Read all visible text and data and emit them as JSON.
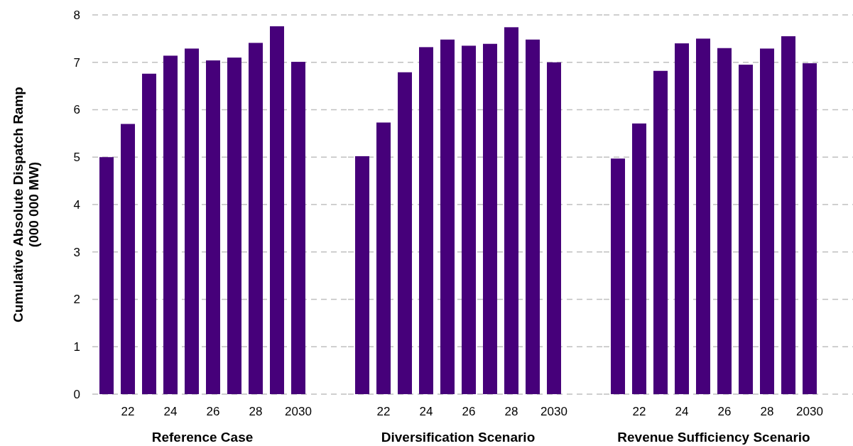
{
  "chart_data": [
    {
      "type": "bar",
      "xlabel": "Reference Case",
      "ylabel": "Cumulative Absolute Dispatch Ramp\n(000 000 MW)",
      "categories": [
        null,
        "22",
        null,
        "24",
        null,
        "26",
        null,
        "28",
        null,
        "2030"
      ],
      "values": [
        5.0,
        5.7,
        6.76,
        7.14,
        7.29,
        7.04,
        7.1,
        7.41,
        7.76,
        7.01
      ],
      "color": "#46007a",
      "ylim": [
        0,
        8
      ],
      "yticks": [
        0,
        1,
        2,
        3,
        4,
        5,
        6,
        7,
        8
      ],
      "grid": "y"
    },
    {
      "type": "bar",
      "xlabel": "Diversification Scenario",
      "categories": [
        null,
        "22",
        null,
        "24",
        null,
        "26",
        null,
        "28",
        null,
        "2030"
      ],
      "values": [
        5.02,
        5.73,
        6.79,
        7.32,
        7.48,
        7.35,
        7.39,
        7.74,
        7.48,
        7.0
      ],
      "color": "#46007a",
      "ylim": [
        0,
        8
      ],
      "yticks": [
        0,
        1,
        2,
        3,
        4,
        5,
        6,
        7,
        8
      ],
      "grid": "y",
      "tick_labels": "x"
    },
    {
      "type": "bar",
      "xlabel": "Revenue Sufficiency Scenario",
      "categories": [
        null,
        "22",
        null,
        "24",
        null,
        "26",
        null,
        "28",
        null,
        "2030"
      ],
      "values": [
        4.97,
        5.71,
        6.82,
        7.4,
        7.5,
        7.3,
        6.95,
        7.29,
        7.55,
        6.98
      ],
      "color": "#46007a",
      "ylim": [
        0,
        8
      ],
      "yticks": [
        0,
        1,
        2,
        3,
        4,
        5,
        6,
        7,
        8
      ],
      "grid": "y",
      "tick_labels": "x"
    }
  ]
}
